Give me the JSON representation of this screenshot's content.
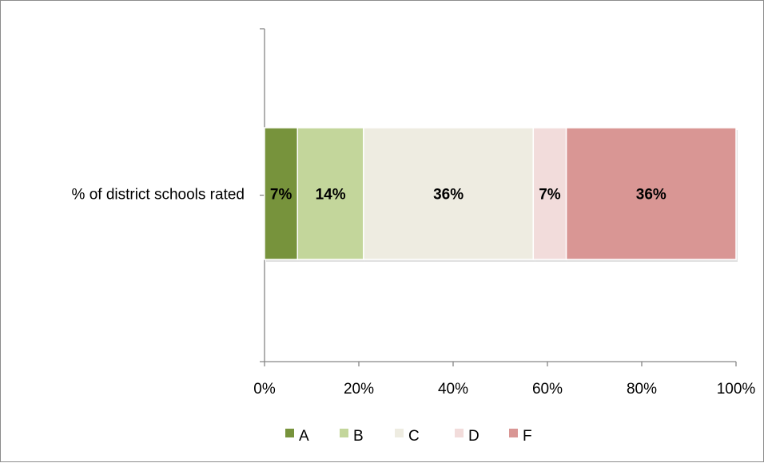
{
  "chart_data": {
    "type": "bar",
    "orientation": "horizontal",
    "stacked": "percent",
    "categories": [
      "% of district schools rated"
    ],
    "series": [
      {
        "name": "A",
        "values": [
          7
        ],
        "color": "#77933C",
        "label": "7%"
      },
      {
        "name": "B",
        "values": [
          14
        ],
        "color": "#C3D69B",
        "label": "14%"
      },
      {
        "name": "C",
        "values": [
          36
        ],
        "color": "#EEECE1",
        "label": "36%"
      },
      {
        "name": "D",
        "values": [
          7
        ],
        "color": "#F2DCDB",
        "label": "7%"
      },
      {
        "name": "F",
        "values": [
          36
        ],
        "color": "#D99694",
        "label": "36%"
      }
    ],
    "x_ticks": [
      "0%",
      "20%",
      "40%",
      "60%",
      "80%",
      "100%"
    ],
    "xlim": [
      0,
      100
    ],
    "grid": false,
    "legend_position": "bottom"
  }
}
